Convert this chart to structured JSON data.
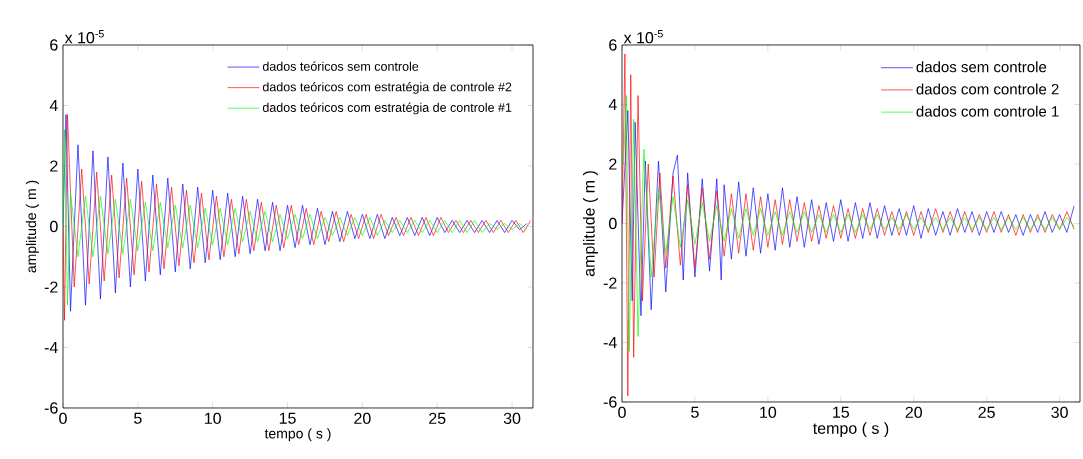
{
  "chart_data": [
    {
      "type": "line",
      "xlabel": "tempo ( s )",
      "ylabel": "amplitude ( m )",
      "annotations": [
        "x 10$^{-5}$"
      ],
      "xlim": [
        0,
        31.4
      ],
      "ylim": [
        -6,
        6
      ],
      "xticks": [
        0,
        5,
        10,
        15,
        20,
        25,
        30
      ],
      "yticks": [
        -6,
        -4,
        -2,
        0,
        2,
        4,
        6
      ],
      "legend": "top right",
      "marker": "none",
      "line_style": "solid",
      "series": [
        {
          "name": "dados teóricos sem controle",
          "color": "#0000ff",
          "x": [
            0,
            0.2,
            0.5,
            1,
            1.5,
            2,
            2.5,
            3,
            3.5,
            4,
            4.5,
            5,
            5.5,
            6,
            6.5,
            7,
            7.5,
            8,
            8.5,
            9,
            9.5,
            10,
            10.5,
            11,
            11.5,
            12,
            12.5,
            13,
            13.5,
            14,
            14.5,
            15,
            15.5,
            16,
            16.5,
            17,
            17.5,
            18,
            18.5,
            19,
            19.5,
            20,
            20.5,
            21,
            21.5,
            22,
            22.5,
            23,
            23.5,
            24,
            24.5,
            25,
            25.5,
            26,
            26.5,
            27,
            27.5,
            28,
            28.5,
            29,
            29.5,
            30,
            30.5,
            31
          ],
          "values": [
            0,
            3.7,
            -2.8,
            2.7,
            -2.6,
            2.5,
            -2.4,
            2.3,
            -2.2,
            2.1,
            -2.0,
            1.9,
            -1.8,
            1.7,
            -1.6,
            1.6,
            -1.5,
            1.4,
            -1.4,
            1.3,
            -1.2,
            1.2,
            -1.1,
            1.1,
            -1.0,
            1.0,
            -0.9,
            0.9,
            -0.8,
            0.8,
            -0.8,
            0.7,
            -0.7,
            0.7,
            -0.6,
            0.6,
            -0.6,
            0.5,
            -0.5,
            0.5,
            -0.4,
            0.4,
            -0.4,
            0.4,
            -0.4,
            0.3,
            -0.3,
            0.3,
            -0.3,
            0.3,
            -0.3,
            0.3,
            -0.2,
            0.2,
            -0.2,
            0.2,
            -0.2,
            0.2,
            -0.2,
            0.2,
            -0.2,
            0.2,
            -0.1,
            0.1
          ]
        },
        {
          "name": "dados teóricos com estratégia de controle #2",
          "color": "#ff0000",
          "x": [
            0,
            0.1,
            0.3,
            0.75,
            1.25,
            1.75,
            2.25,
            2.75,
            3.25,
            3.75,
            4.25,
            4.75,
            5.25,
            5.75,
            6.25,
            6.75,
            7.25,
            7.75,
            8.25,
            8.75,
            9.25,
            9.75,
            10.25,
            10.75,
            11.25,
            11.75,
            12.25,
            12.75,
            13.25,
            13.75,
            14.25,
            14.75,
            15.25,
            15.75,
            16.25,
            16.75,
            17.25,
            17.75,
            18.25,
            18.75,
            19.25,
            19.75,
            20.25,
            20.75,
            21.25,
            21.75,
            22.25,
            22.75,
            23.25,
            23.75,
            24.25,
            24.75,
            25.25,
            25.75,
            26.25,
            26.75,
            27.25,
            27.75,
            28.25,
            28.75,
            29.25,
            29.75,
            30.25,
            30.75,
            31.25
          ],
          "values": [
            0,
            -3.1,
            3.7,
            -2.0,
            1.9,
            -1.9,
            1.8,
            -1.8,
            1.7,
            -1.7,
            1.6,
            -1.6,
            1.5,
            -1.5,
            1.4,
            -1.4,
            1.3,
            -1.3,
            1.2,
            -1.2,
            1.1,
            -1.1,
            1.0,
            -1.0,
            0.9,
            -0.9,
            0.9,
            -0.8,
            0.8,
            -0.8,
            0.7,
            -0.7,
            0.7,
            -0.6,
            0.6,
            -0.6,
            0.5,
            -0.5,
            0.5,
            -0.5,
            0.4,
            -0.4,
            0.4,
            -0.4,
            0.4,
            -0.3,
            0.3,
            -0.3,
            0.3,
            -0.3,
            0.3,
            -0.3,
            0.3,
            -0.2,
            0.2,
            -0.2,
            0.2,
            -0.2,
            0.2,
            -0.2,
            0.2,
            -0.2,
            0.2,
            -0.2,
            0.2
          ]
        },
        {
          "name": "dados teóricos com estratégia de controle #1",
          "color": "#00ff00",
          "x": [
            0,
            0.1,
            0.3,
            0.5,
            1,
            1.5,
            2,
            2.5,
            3,
            3.5,
            4,
            4.5,
            5,
            5.5,
            6,
            6.5,
            7,
            7.5,
            8,
            8.5,
            9,
            9.5,
            10,
            10.5,
            11,
            11.5,
            12,
            12.5,
            13,
            13.5,
            14,
            14.5,
            15,
            15.5,
            16,
            16.5,
            17,
            17.5,
            18,
            18.5,
            19,
            19.5,
            20,
            20.5,
            21,
            21.5,
            22,
            22.5,
            23,
            23.5,
            24,
            24.5,
            25,
            25.5,
            26,
            26.5,
            27,
            27.5,
            28,
            28.5,
            29,
            29.5,
            30,
            30.5,
            31
          ],
          "values": [
            0,
            3.2,
            -2.6,
            1.1,
            -1.0,
            1.0,
            -1.0,
            1.0,
            -0.9,
            0.9,
            -0.9,
            0.9,
            -0.8,
            0.8,
            -0.8,
            0.8,
            -0.7,
            0.7,
            -0.7,
            0.7,
            -0.7,
            0.6,
            -0.6,
            0.6,
            -0.6,
            0.6,
            -0.5,
            0.5,
            -0.5,
            0.5,
            -0.5,
            0.4,
            -0.4,
            0.4,
            -0.4,
            0.4,
            -0.4,
            0.3,
            -0.3,
            0.3,
            -0.3,
            0.3,
            -0.3,
            0.3,
            -0.3,
            0.2,
            -0.2,
            0.2,
            -0.2,
            0.2,
            -0.2,
            0.2,
            -0.2,
            0.2,
            -0.2,
            0.2,
            -0.2,
            0.2,
            -0.2,
            0.1,
            -0.1,
            0.1,
            -0.1,
            0.1,
            -0.1
          ]
        }
      ]
    },
    {
      "type": "line",
      "xlabel": "tempo ( s )",
      "ylabel": "amplitude ( m )",
      "annotations": [
        "x 10$^{-5}$"
      ],
      "xlim": [
        0,
        31.4
      ],
      "ylim": [
        -6,
        6
      ],
      "xticks": [
        0,
        5,
        10,
        15,
        20,
        25,
        30
      ],
      "yticks": [
        -6,
        -4,
        -2,
        0,
        2,
        4,
        6
      ],
      "legend": "top right",
      "marker": "none",
      "line_style": "solid",
      "series": [
        {
          "name": "dados sem controle",
          "color": "#0000ff",
          "x": [
            0,
            0.4,
            0.7,
            0.9,
            1.3,
            1.6,
            2,
            2.5,
            3,
            3.5,
            3.8,
            4.2,
            4.5,
            5,
            5.5,
            6,
            6.5,
            6.8,
            7,
            7.5,
            8,
            8.5,
            9,
            9.5,
            10,
            10.5,
            11,
            11.5,
            12,
            12.5,
            13,
            13.5,
            14,
            14.5,
            15,
            15.5,
            16,
            16.5,
            17,
            17.5,
            18,
            18.5,
            19,
            19.5,
            20,
            20.5,
            21,
            21.5,
            22,
            22.5,
            23,
            23.5,
            24,
            24.5,
            25,
            25.5,
            26,
            26.5,
            27,
            27.5,
            28,
            28.5,
            29,
            29.5,
            30,
            30.5,
            31
          ],
          "values": [
            0,
            3.8,
            -2.6,
            3.4,
            -3.1,
            2.1,
            -2.9,
            2.1,
            -2.3,
            1.7,
            2.3,
            -1.9,
            1.7,
            -1.8,
            1.5,
            -1.6,
            1.5,
            -1.9,
            1.3,
            -1.2,
            1.4,
            -1.1,
            1.2,
            -1.0,
            1.0,
            -0.9,
            1.2,
            -0.8,
            0.9,
            -0.8,
            0.8,
            -0.7,
            0.7,
            -0.6,
            0.8,
            -0.6,
            0.7,
            -0.5,
            0.7,
            -0.5,
            0.6,
            -0.4,
            0.5,
            -0.4,
            0.6,
            -0.5,
            0.5,
            -0.4,
            0.4,
            -0.4,
            0.5,
            -0.3,
            0.4,
            -0.4,
            0.4,
            -0.3,
            0.4,
            -0.3,
            0.3,
            -0.4,
            0.3,
            -0.3,
            0.4,
            -0.3,
            0.3,
            -0.3,
            0.6
          ]
        },
        {
          "name": "dados com controle 2",
          "color": "#ff0000",
          "x": [
            0,
            0.2,
            0.4,
            0.6,
            0.8,
            1.1,
            1.4,
            1.8,
            2.2,
            2.6,
            3,
            3.5,
            4,
            4.5,
            5,
            5.5,
            6,
            6.5,
            7,
            7.5,
            8,
            8.5,
            9,
            9.5,
            10,
            10.5,
            11,
            11.5,
            12,
            12.5,
            13,
            13.5,
            14,
            14.5,
            15,
            15.5,
            16,
            16.5,
            17,
            17.5,
            18,
            18.5,
            19,
            19.5,
            20,
            20.5,
            21,
            21.5,
            22,
            22.5,
            23,
            23.5,
            24,
            24.5,
            25,
            25.5,
            26,
            26.5,
            27,
            27.5,
            28,
            28.5,
            29,
            29.5,
            30,
            30.5,
            31
          ],
          "values": [
            0,
            5.7,
            -5.8,
            5.0,
            -4.5,
            4.3,
            -2.6,
            2.0,
            -1.8,
            1.7,
            -1.5,
            1.6,
            -1.4,
            1.3,
            -1.5,
            1.2,
            -1.2,
            1.1,
            -1.1,
            1.0,
            -1.0,
            1.0,
            -0.9,
            0.9,
            -0.8,
            0.8,
            -0.7,
            0.8,
            -0.6,
            0.7,
            -0.6,
            0.6,
            -0.5,
            0.6,
            -0.5,
            0.5,
            -0.5,
            0.5,
            -0.4,
            0.5,
            -0.4,
            0.4,
            -0.4,
            0.4,
            -0.4,
            0.4,
            -0.3,
            0.5,
            -0.3,
            0.4,
            -0.3,
            0.4,
            -0.3,
            0.3,
            -0.3,
            0.4,
            -0.3,
            0.3,
            -0.4,
            0.3,
            -0.3,
            0.3,
            -0.3,
            0.3,
            -0.2,
            0.4,
            -0.2
          ]
        },
        {
          "name": "dados com controle 1",
          "color": "#00ff00",
          "x": [
            0.1,
            0.3,
            0.5,
            0.8,
            1.1,
            1.5,
            2,
            2.5,
            3,
            3.5,
            4,
            4.5,
            5,
            5.5,
            6,
            6.5,
            7,
            7.5,
            8,
            8.5,
            9,
            9.5,
            10,
            10.5,
            11,
            11.5,
            12,
            12.5,
            13,
            13.5,
            14,
            14.5,
            15,
            15.5,
            16,
            16.5,
            17,
            17.5,
            18,
            18.5,
            19,
            19.5,
            20,
            20.5,
            21,
            21.5,
            22,
            22.5,
            23,
            23.5,
            24,
            24.5,
            25,
            25.5,
            26,
            26.5,
            27,
            27.5,
            28,
            28.5,
            29,
            29.5,
            30,
            30.5,
            31
          ],
          "values": [
            2.0,
            4.3,
            -4.3,
            3.5,
            -3.8,
            2.5,
            -1.8,
            1.2,
            -1.0,
            0.9,
            -0.8,
            0.8,
            -0.7,
            0.7,
            -0.6,
            0.6,
            -0.6,
            0.5,
            -0.5,
            0.5,
            -0.4,
            0.5,
            -0.4,
            0.4,
            -0.4,
            0.4,
            -0.3,
            0.4,
            -0.3,
            0.3,
            -0.3,
            0.3,
            -0.3,
            0.3,
            -0.3,
            0.3,
            -0.2,
            0.3,
            -0.2,
            0.2,
            -0.2,
            0.3,
            -0.2,
            0.2,
            -0.2,
            0.2,
            -0.2,
            0.2,
            -0.2,
            0.2,
            -0.2,
            0.2,
            -0.2,
            0.2,
            -0.2,
            0.2,
            -0.2,
            0.2,
            -0.2,
            0.2,
            -0.2,
            0.2,
            -0.2,
            0.2,
            -0.1
          ]
        }
      ]
    }
  ]
}
